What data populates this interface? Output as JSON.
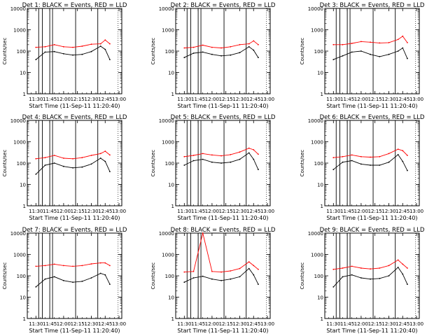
{
  "colors": {
    "events": "#000000",
    "lld": "#ff0000",
    "axes": "#000000",
    "background": "#ffffff"
  },
  "chart_data": [
    {
      "type": "line",
      "title": "Det 1: BLACK = Events, RED = LLD",
      "xlabel": "Start Time (11-Sep-11 11:20:40)",
      "ylabel": "Counts/sec",
      "x_ticks": [
        "11:30",
        "11:45",
        "12:00",
        "12:15",
        "12:30",
        "12:45",
        "13:00"
      ],
      "y_ticks": [
        "1",
        "10",
        "100",
        "1000",
        "10000"
      ],
      "ylim": [
        1,
        10000
      ],
      "yscale": "log",
      "x": [
        "11:30",
        "11:40",
        "11:50",
        "12:00",
        "12:10",
        "12:20",
        "12:30",
        "12:40",
        "12:45",
        "12:50"
      ],
      "series": [
        {
          "name": "Events",
          "values": [
            40,
            90,
            95,
            75,
            65,
            70,
            95,
            170,
            120,
            40
          ]
        },
        {
          "name": "LLD",
          "values": [
            150,
            160,
            200,
            160,
            150,
            170,
            210,
            220,
            330,
            220
          ]
        }
      ]
    },
    {
      "type": "line",
      "title": "Det 2: BLACK = Events, RED = LLD",
      "xlabel": "Start Time (11-Sep-11 11:20:40)",
      "ylabel": "Counts/sec",
      "x_ticks": [
        "11:30",
        "11:45",
        "12:00",
        "12:15",
        "12:30",
        "12:45",
        "13:00"
      ],
      "y_ticks": [
        "1",
        "10",
        "100",
        "1000",
        "10000"
      ],
      "ylim": [
        1,
        10000
      ],
      "yscale": "log",
      "x": [
        "11:30",
        "11:40",
        "11:50",
        "12:00",
        "12:10",
        "12:20",
        "12:30",
        "12:40",
        "12:45",
        "12:50"
      ],
      "series": [
        {
          "name": "Events",
          "values": [
            50,
            80,
            90,
            70,
            60,
            65,
            85,
            160,
            110,
            50
          ]
        },
        {
          "name": "LLD",
          "values": [
            140,
            150,
            190,
            150,
            140,
            160,
            200,
            220,
            300,
            200
          ]
        }
      ]
    },
    {
      "type": "line",
      "title": "Det 3: BLACK = Events, RED = LLD",
      "xlabel": "Start Time (11-Sep-11 11:20:40)",
      "ylabel": "Counts/sec",
      "x_ticks": [
        "11:30",
        "11:45",
        "12:00",
        "12:15",
        "12:30",
        "12:45",
        "13:00"
      ],
      "y_ticks": [
        "1",
        "10",
        "100",
        "1000",
        "10000"
      ],
      "ylim": [
        1,
        10000
      ],
      "yscale": "log",
      "x": [
        "11:30",
        "11:40",
        "11:50",
        "12:00",
        "12:10",
        "12:20",
        "12:30",
        "12:40",
        "12:45",
        "12:50"
      ],
      "series": [
        {
          "name": "Events",
          "values": [
            40,
            60,
            90,
            100,
            70,
            55,
            70,
            100,
            140,
            45
          ]
        },
        {
          "name": "LLD",
          "values": [
            200,
            200,
            230,
            280,
            260,
            240,
            250,
            350,
            500,
            250
          ]
        }
      ]
    },
    {
      "type": "line",
      "title": "Det 4: BLACK = Events, RED = LLD",
      "xlabel": "Start Time (11-Sep-11 11:20:40)",
      "ylabel": "Counts/sec",
      "x_ticks": [
        "11:30",
        "11:45",
        "12:00",
        "12:15",
        "12:30",
        "12:45",
        "13:00"
      ],
      "y_ticks": [
        "1",
        "10",
        "100",
        "1000",
        "10000"
      ],
      "ylim": [
        1,
        10000
      ],
      "yscale": "log",
      "x": [
        "11:30",
        "11:40",
        "11:50",
        "12:00",
        "12:10",
        "12:20",
        "12:30",
        "12:40",
        "12:45",
        "12:50"
      ],
      "series": [
        {
          "name": "Events",
          "values": [
            30,
            80,
            100,
            70,
            60,
            65,
            90,
            170,
            120,
            40
          ]
        },
        {
          "name": "LLD",
          "values": [
            160,
            180,
            230,
            170,
            160,
            180,
            230,
            280,
            360,
            240
          ]
        }
      ]
    },
    {
      "type": "line",
      "title": "Det 5: BLACK = Events, RED = LLD",
      "xlabel": "Start Time (11-Sep-11 11:20:40)",
      "ylabel": "Counts/sec",
      "x_ticks": [
        "11:30",
        "11:45",
        "12:00",
        "12:15",
        "12:30",
        "12:45",
        "13:00"
      ],
      "y_ticks": [
        "1",
        "10",
        "100",
        "1000",
        "10000"
      ],
      "ylim": [
        1,
        10000
      ],
      "yscale": "log",
      "x": [
        "11:30",
        "11:40",
        "11:50",
        "12:00",
        "12:10",
        "12:20",
        "12:30",
        "12:40",
        "12:45",
        "12:50"
      ],
      "series": [
        {
          "name": "Events",
          "values": [
            80,
            130,
            150,
            110,
            100,
            110,
            150,
            300,
            150,
            50
          ]
        },
        {
          "name": "LLD",
          "values": [
            200,
            230,
            280,
            240,
            220,
            250,
            330,
            500,
            420,
            260
          ]
        }
      ]
    },
    {
      "type": "line",
      "title": "Det 6: BLACK = Events, RED = LLD",
      "xlabel": "Start Time (11-Sep-11 11:20:40)",
      "ylabel": "Counts/sec",
      "x_ticks": [
        "11:30",
        "11:45",
        "12:00",
        "12:15",
        "12:30",
        "12:45",
        "13:00"
      ],
      "y_ticks": [
        "1",
        "10",
        "100",
        "1000",
        "10000"
      ],
      "ylim": [
        1,
        10000
      ],
      "yscale": "log",
      "x": [
        "11:30",
        "11:40",
        "11:50",
        "12:00",
        "12:10",
        "12:20",
        "12:30",
        "12:40",
        "12:45",
        "12:50"
      ],
      "series": [
        {
          "name": "Events",
          "values": [
            50,
            110,
            130,
            90,
            80,
            80,
            110,
            250,
            120,
            45
          ]
        },
        {
          "name": "LLD",
          "values": [
            180,
            200,
            240,
            200,
            190,
            200,
            280,
            450,
            380,
            230
          ]
        }
      ]
    },
    {
      "type": "line",
      "title": "Det 7: BLACK = Events, RED = LLD",
      "xlabel": "Start Time (11-Sep-11 11:20:40)",
      "ylabel": "Counts/sec",
      "x_ticks": [
        "11:30",
        "11:45",
        "12:00",
        "12:15",
        "12:30",
        "12:45",
        "13:00"
      ],
      "y_ticks": [
        "1",
        "10",
        "100",
        "1000",
        "10000"
      ],
      "ylim": [
        1,
        10000
      ],
      "yscale": "log",
      "x": [
        "11:30",
        "11:40",
        "11:50",
        "12:00",
        "12:10",
        "12:20",
        "12:30",
        "12:40",
        "12:45",
        "12:50"
      ],
      "series": [
        {
          "name": "Events",
          "values": [
            30,
            70,
            90,
            60,
            50,
            55,
            80,
            130,
            110,
            40
          ]
        },
        {
          "name": "LLD",
          "values": [
            280,
            300,
            350,
            300,
            280,
            300,
            360,
            400,
            400,
            300
          ]
        }
      ]
    },
    {
      "type": "line",
      "title": "Det 8: BLACK = Events, RED = LLD",
      "xlabel": "Start Time (11-Sep-11 11:20:40)",
      "ylabel": "Counts/sec",
      "x_ticks": [
        "11:30",
        "11:45",
        "12:00",
        "12:15",
        "12:30",
        "12:45",
        "13:00"
      ],
      "y_ticks": [
        "1",
        "10",
        "100",
        "1000",
        "10000"
      ],
      "ylim": [
        1,
        10000
      ],
      "yscale": "log",
      "x": [
        "11:30",
        "11:40",
        "11:50",
        "12:00",
        "12:10",
        "12:20",
        "12:30",
        "12:40",
        "12:45",
        "12:50"
      ],
      "series": [
        {
          "name": "Events",
          "values": [
            50,
            80,
            95,
            70,
            60,
            70,
            90,
            220,
            110,
            40
          ]
        },
        {
          "name": "LLD",
          "values": [
            150,
            160,
            10000,
            160,
            150,
            170,
            220,
            450,
            300,
            200
          ]
        }
      ]
    },
    {
      "type": "line",
      "title": "Det 9: BLACK = Events, RED = LLD",
      "xlabel": "Start Time (11-Sep-11 11:20:40)",
      "ylabel": "Counts/sec",
      "x_ticks": [
        "11:30",
        "11:45",
        "12:00",
        "12:15",
        "12:30",
        "12:45",
        "13:00"
      ],
      "y_ticks": [
        "1",
        "10",
        "100",
        "1000",
        "10000"
      ],
      "ylim": [
        1,
        10000
      ],
      "yscale": "log",
      "x": [
        "11:30",
        "11:40",
        "11:50",
        "12:00",
        "12:10",
        "12:20",
        "12:30",
        "12:40",
        "12:45",
        "12:50"
      ],
      "series": [
        {
          "name": "Events",
          "values": [
            30,
            90,
            110,
            80,
            70,
            75,
            100,
            250,
            120,
            40
          ]
        },
        {
          "name": "LLD",
          "values": [
            200,
            230,
            280,
            230,
            210,
            230,
            300,
            550,
            350,
            230
          ]
        }
      ]
    }
  ]
}
